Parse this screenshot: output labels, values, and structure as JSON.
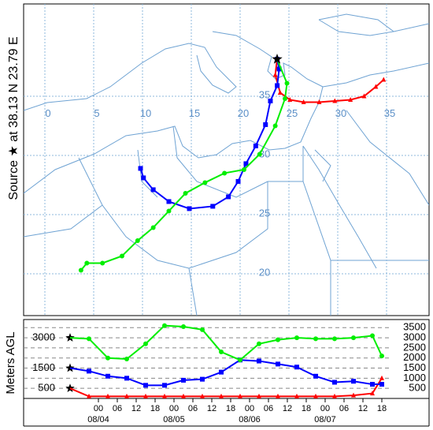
{
  "map": {
    "side_label": "Source ★ at  38.13 N  23.79 E",
    "source": {
      "lon": 23.79,
      "lat": 38.13
    },
    "lon_ticks": [
      0,
      5,
      10,
      15,
      20,
      25,
      30,
      35
    ],
    "lat_ticks": [
      20,
      25,
      30,
      35
    ],
    "trajectories": [
      {
        "color": "#ff0000",
        "marker": "triangle",
        "lon": [
          23.79,
          23.6,
          24.1,
          25.1,
          26.5,
          28.1,
          29.7,
          31.3,
          32.7,
          33.9,
          34.7
        ],
        "lat": [
          38.13,
          36.8,
          35.3,
          34.7,
          34.5,
          34.5,
          34.6,
          34.7,
          35.0,
          35.8,
          36.4
        ]
      },
      {
        "color": "#0000ff",
        "marker": "square",
        "lon": [
          23.79,
          24.0,
          23.8,
          23.1,
          22.6,
          21.6,
          20.6,
          19.8,
          18.8,
          17.2,
          14.8,
          12.7,
          11.1,
          10.1,
          9.8
        ],
        "lat": [
          38.13,
          37.3,
          35.9,
          34.6,
          32.6,
          30.8,
          29.3,
          27.8,
          26.5,
          25.7,
          25.5,
          26.1,
          27.1,
          28.1,
          28.9
        ]
      },
      {
        "color": "#00ee00",
        "marker": "circle",
        "lon": [
          23.79,
          24.8,
          24.6,
          23.6,
          22.0,
          20.4,
          18.4,
          16.4,
          14.4,
          12.7,
          11.1,
          9.5,
          7.9,
          5.9,
          4.3,
          3.7
        ],
        "lat": [
          38.13,
          36.1,
          34.8,
          32.5,
          30.1,
          28.8,
          28.5,
          27.7,
          26.8,
          25.3,
          23.9,
          22.8,
          21.5,
          20.9,
          20.9,
          20.3
        ]
      }
    ]
  },
  "chart_data": {
    "type": "line",
    "ylabel": "Meters AGL",
    "x": [
      -9,
      -3,
      3,
      9,
      15,
      21,
      27,
      33,
      39,
      45,
      51,
      57,
      63,
      69,
      75,
      81,
      87,
      90
    ],
    "xlim": [
      -23.75,
      105
    ],
    "xticks": [
      {
        "value": 0,
        "label": "00"
      },
      {
        "value": 6,
        "label": "06"
      },
      12,
      18,
      {
        "value": 24,
        "label": "00"
      },
      {
        "value": 30,
        "label": "06"
      },
      {
        "value": 36,
        "label": "12"
      },
      {
        "value": 42,
        "label": "18"
      },
      {
        "value": 48,
        "label": "00"
      },
      {
        "value": 54,
        "label": "06"
      },
      {
        "value": 60,
        "label": "12"
      },
      {
        "value": 66,
        "label": "18"
      },
      {
        "value": 72,
        "label": "00"
      },
      {
        "value": 78,
        "label": "06"
      },
      {
        "value": 84,
        "label": "12"
      },
      {
        "value": 90,
        "label": "18"
      }
    ],
    "date_labels": [
      {
        "value": 0,
        "label": "08/04"
      },
      {
        "value": 24,
        "label": "08/05"
      },
      {
        "value": 48,
        "label": "08/06"
      },
      {
        "value": 72,
        "label": "08/07"
      }
    ],
    "ylim": [
      0,
      3900
    ],
    "yticks": [
      500,
      1000,
      1500,
      2000,
      2500,
      3000,
      3500
    ],
    "source_heights": [
      3000,
      1500,
      500
    ],
    "grid": true,
    "series": [
      {
        "color": "#ff0000",
        "marker": "triangle",
        "values": [
          500,
          100,
          100,
          100,
          100,
          100,
          100,
          100,
          100,
          100,
          100,
          100,
          100,
          100,
          100,
          150,
          250,
          1000
        ]
      },
      {
        "color": "#0000ff",
        "marker": "square",
        "values": [
          1500,
          1350,
          1100,
          1000,
          650,
          650,
          900,
          950,
          1300,
          1900,
          1850,
          1700,
          1550,
          1100,
          800,
          850,
          700,
          700
        ]
      },
      {
        "color": "#00ee00",
        "marker": "circle",
        "values": [
          3000,
          2950,
          2000,
          1950,
          2700,
          3600,
          3550,
          3400,
          2300,
          1900,
          2700,
          2900,
          3000,
          2950,
          2950,
          3000,
          3100,
          2100
        ]
      }
    ]
  }
}
